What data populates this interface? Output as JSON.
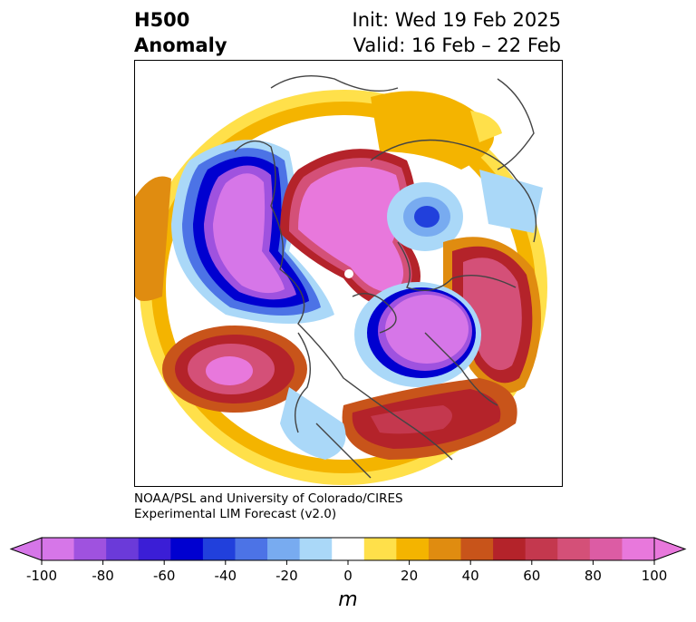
{
  "title": {
    "line1_left": "H500",
    "line2_left": "Anomaly",
    "line1_right": "Init: Wed 19 Feb 2025",
    "line2_right": "Valid: 16 Feb – 22 Feb"
  },
  "credit": {
    "line1": "NOAA/PSL and University of Colorado/CIRES",
    "line2": "Experimental LIM Forecast (v2.0)"
  },
  "colorbar": {
    "unit": "m",
    "ticks": [
      "-100",
      "-80",
      "-60",
      "-40",
      "-20",
      "0",
      "20",
      "40",
      "60",
      "80",
      "100"
    ],
    "levels": [
      -100,
      -90,
      -80,
      -70,
      -60,
      -50,
      -40,
      -30,
      -20,
      -10,
      10,
      20,
      30,
      40,
      50,
      60,
      70,
      80,
      90,
      100
    ],
    "colors": [
      "#d676e8",
      "#9f52df",
      "#6b3ad9",
      "#3b1ed6",
      "#0000d0",
      "#2140dc",
      "#4c73e6",
      "#78abf0",
      "#aad8f8",
      "#ffffff",
      "#ffe04a",
      "#f4b400",
      "#e08c10",
      "#c8541a",
      "#b4232a",
      "#c4384e",
      "#d45078",
      "#dc5ca4",
      "#e878dc"
    ],
    "under_color": "#d676e8",
    "over_color": "#e878dc"
  },
  "map": {
    "projection": "north polar stereographic",
    "field": "500 hPa geopotential height anomaly"
  }
}
